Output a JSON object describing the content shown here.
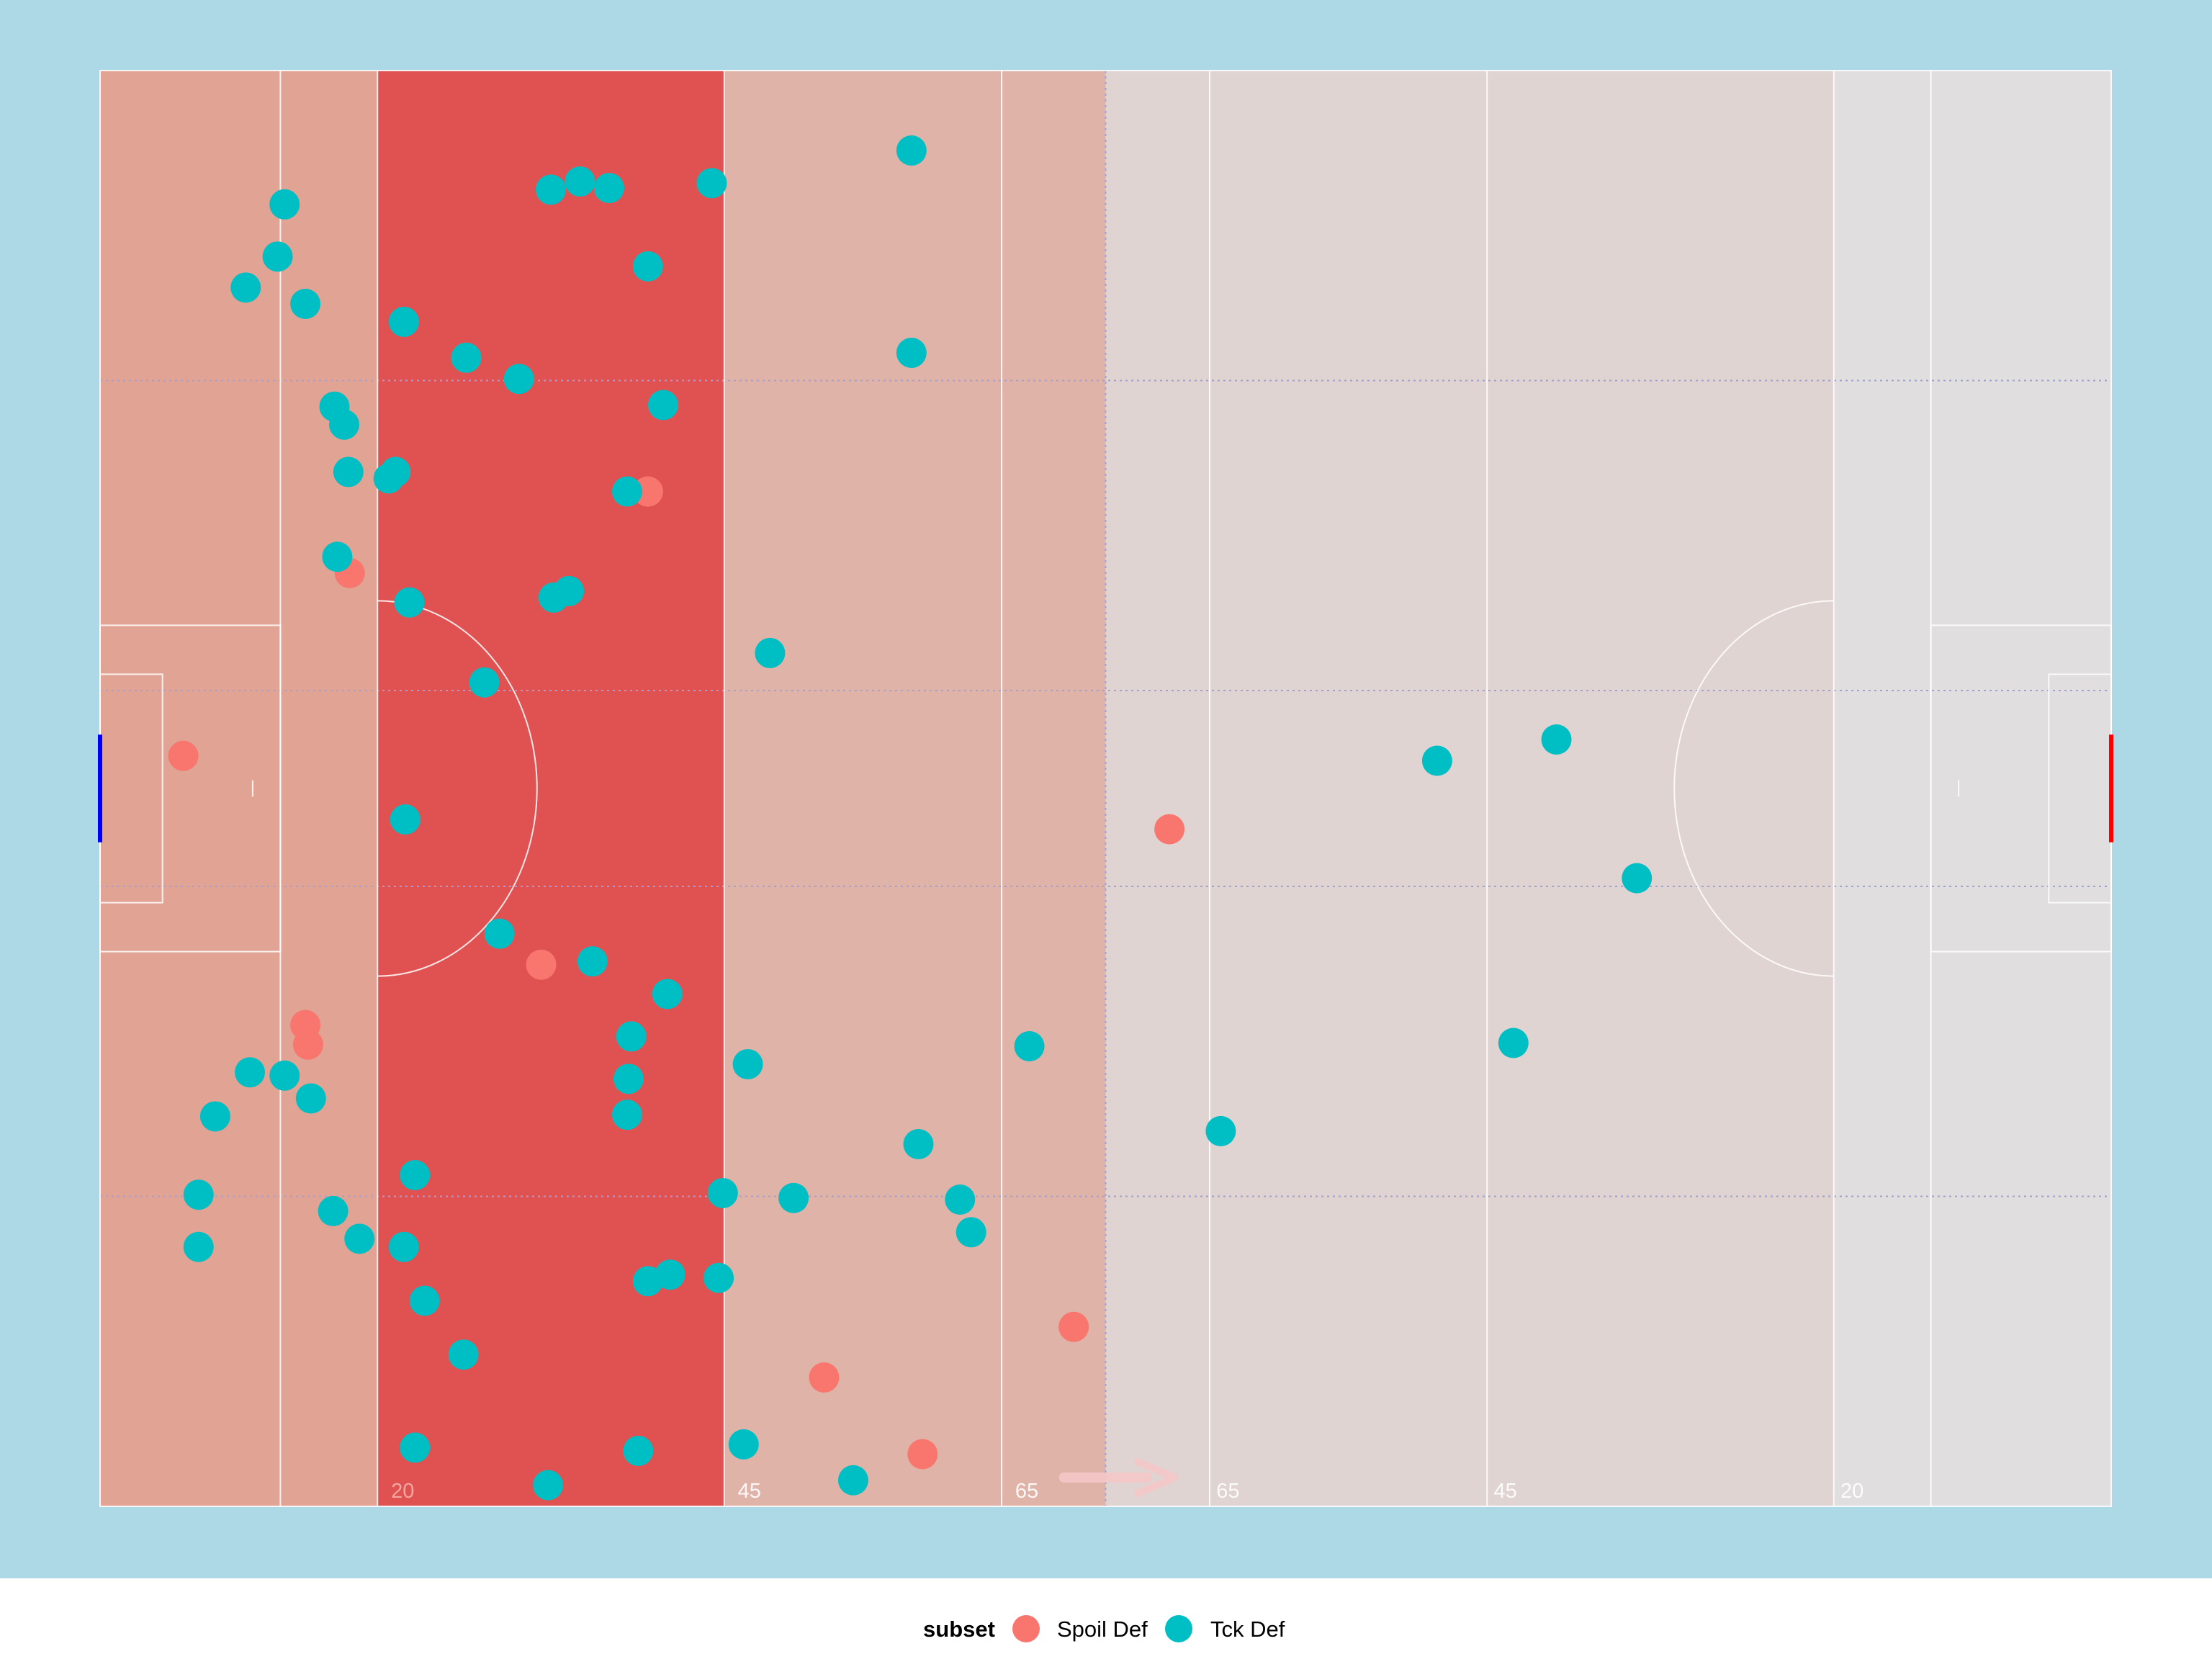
{
  "chart_data": {
    "type": "scatter",
    "title": "",
    "xlabel": "",
    "ylabel": "",
    "pitch": {
      "length_m": 145,
      "width_m": 88,
      "xlim": [
        0,
        145
      ],
      "ylim": [
        0,
        88
      ],
      "distance_labels": [
        {
          "x": 21.5,
          "text": "20"
        },
        {
          "x": 46.5,
          "text": "45"
        },
        {
          "x": 66.5,
          "text": "65"
        },
        {
          "x": 81,
          "text": "65"
        },
        {
          "x": 101,
          "text": "45"
        },
        {
          "x": 126,
          "text": "20"
        }
      ],
      "zone_shading": [
        {
          "x_range": [
            0,
            20
          ],
          "color": "#e0a394"
        },
        {
          "x_range": [
            20,
            45
          ],
          "color": "#e05252"
        },
        {
          "x_range": [
            45,
            72.5
          ],
          "color": "#e0b3a8"
        },
        {
          "x_range": [
            72.5,
            145
          ],
          "color": "#e0d4d2"
        },
        {
          "x_range": [
            125,
            145
          ],
          "color": "#e0dede"
        }
      ],
      "colors": {
        "background": "#add8e6",
        "lines": "#ffffff",
        "left_goal": "#0000ff",
        "right_goal": "#ff0000",
        "channel_lines": "#9aa0e0"
      },
      "attack_direction": "right"
    },
    "series": [
      {
        "name": "Spoil Def",
        "color": "#f8766d",
        "points": [
          [
            6,
            46
          ],
          [
            18,
            57.2
          ],
          [
            39.5,
            62.2
          ],
          [
            15,
            28.3
          ],
          [
            31.8,
            33.2
          ],
          [
            14.8,
            29.5
          ],
          [
            52.2,
            7.9
          ],
          [
            70.2,
            11
          ],
          [
            59.3,
            3.2
          ],
          [
            77.1,
            41.5
          ],
          [
            39.5,
            62.2
          ]
        ]
      },
      {
        "name": "Tck Def",
        "color": "#00bfc4",
        "points": [
          [
            58.5,
            83.1
          ],
          [
            13.3,
            79.8
          ],
          [
            12.8,
            76.6
          ],
          [
            10.5,
            74.7
          ],
          [
            14.8,
            73.7
          ],
          [
            21.9,
            72.6
          ],
          [
            32.5,
            80.7
          ],
          [
            34.6,
            81.2
          ],
          [
            36.7,
            80.8
          ],
          [
            39.5,
            76
          ],
          [
            44.1,
            81.1
          ],
          [
            58.5,
            70.7
          ],
          [
            26.4,
            70.4
          ],
          [
            30.2,
            69.1
          ],
          [
            16.9,
            67.4
          ],
          [
            17.6,
            66.3
          ],
          [
            40.6,
            67.5
          ],
          [
            17.9,
            63.4
          ],
          [
            21.3,
            63.4
          ],
          [
            20.8,
            63
          ],
          [
            38,
            62.2
          ],
          [
            17.1,
            58.2
          ],
          [
            22.3,
            55.4
          ],
          [
            32.7,
            55.7
          ],
          [
            33.8,
            56.1
          ],
          [
            48.3,
            52.3
          ],
          [
            27.7,
            50.5
          ],
          [
            22,
            42.1
          ],
          [
            28.8,
            35.1
          ],
          [
            35.5,
            33.4
          ],
          [
            40.9,
            31.4
          ],
          [
            38.3,
            28.8
          ],
          [
            46.7,
            27.1
          ],
          [
            13.3,
            26.4
          ],
          [
            10.8,
            26.6
          ],
          [
            15.2,
            25
          ],
          [
            8.3,
            23.9
          ],
          [
            38.1,
            26.2
          ],
          [
            7.1,
            19.1
          ],
          [
            38,
            24
          ],
          [
            59,
            22.2
          ],
          [
            67,
            28.2
          ],
          [
            22.7,
            20.3
          ],
          [
            44.9,
            19.2
          ],
          [
            50,
            18.9
          ],
          [
            62,
            18.8
          ],
          [
            16.8,
            18.1
          ],
          [
            62.8,
            16.8
          ],
          [
            18.7,
            16.4
          ],
          [
            21.9,
            15.9
          ],
          [
            7.1,
            15.9
          ],
          [
            39.5,
            13.8
          ],
          [
            41.1,
            14.2
          ],
          [
            44.6,
            14
          ],
          [
            23.4,
            12.6
          ],
          [
            26.2,
            9.3
          ],
          [
            22.7,
            3.6
          ],
          [
            38.8,
            3.4
          ],
          [
            46.4,
            3.8
          ],
          [
            32.3,
            1.3
          ],
          [
            54.3,
            1.6
          ],
          [
            96.4,
            45.7
          ],
          [
            105,
            47
          ],
          [
            110.8,
            38.5
          ],
          [
            101.9,
            28.4
          ],
          [
            80.8,
            23
          ]
        ]
      }
    ],
    "legend": {
      "position": "bottom",
      "title": "subset",
      "entries": [
        {
          "label": "Spoil Def",
          "color": "#f8766d"
        },
        {
          "label": "Tck Def",
          "color": "#00bfc4"
        }
      ]
    }
  }
}
